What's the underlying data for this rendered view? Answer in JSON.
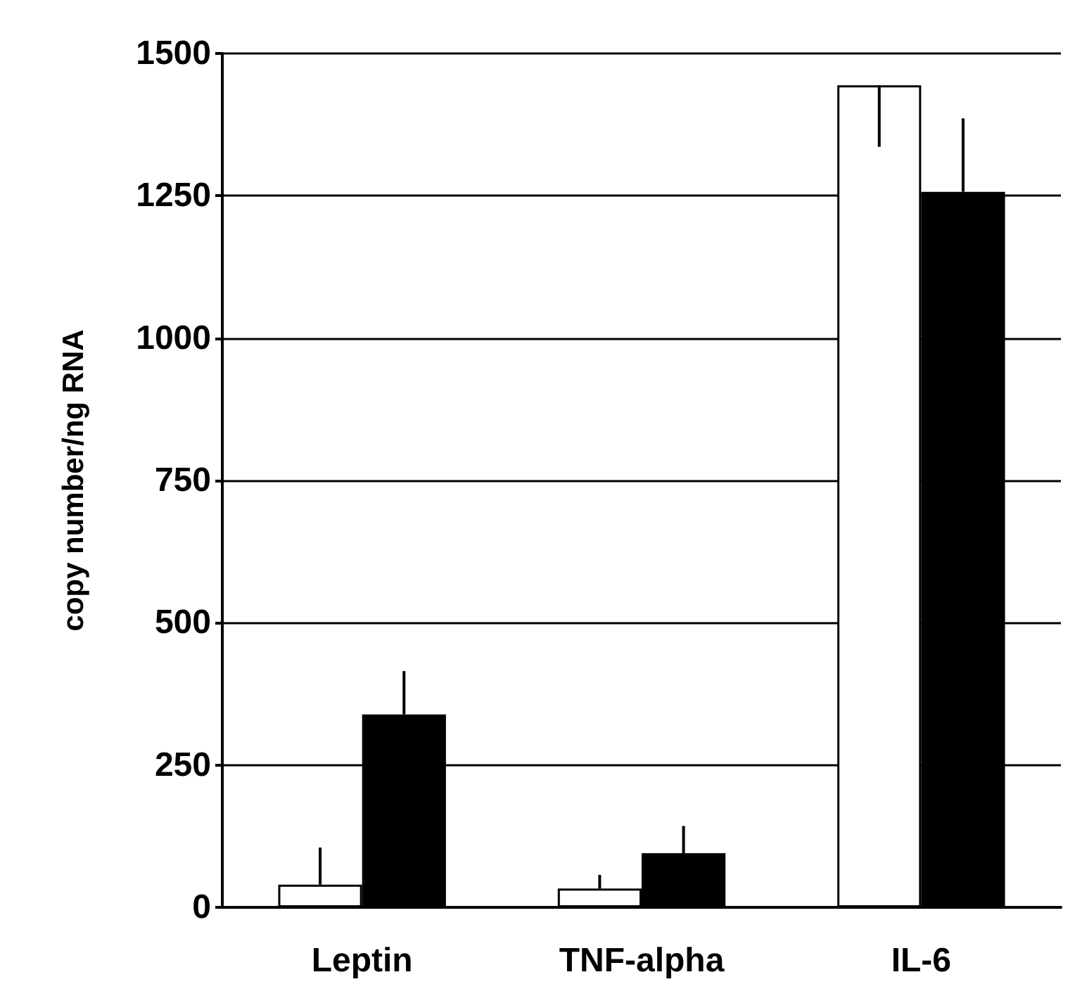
{
  "chart_data": {
    "type": "bar",
    "ylabel": "copy number/ng RNA",
    "categories": [
      "Leptin",
      "TNF-alpha",
      "IL-6"
    ],
    "series": [
      {
        "color": "#ffffff",
        "values": [
          40,
          33,
          1444
        ],
        "errors": [
          [
            40,
            105
          ],
          [
            33,
            57
          ],
          [
            1336,
            1444
          ]
        ]
      },
      {
        "color": "#000000",
        "values": [
          339,
          95,
          1257
        ],
        "errors": [
          [
            339,
            415
          ],
          [
            95,
            143
          ],
          [
            1257,
            1386
          ]
        ]
      }
    ],
    "ylim": [
      0,
      1500
    ],
    "yticks": [
      0,
      250,
      500,
      750,
      1000,
      1250,
      1500
    ],
    "grid": "y"
  }
}
